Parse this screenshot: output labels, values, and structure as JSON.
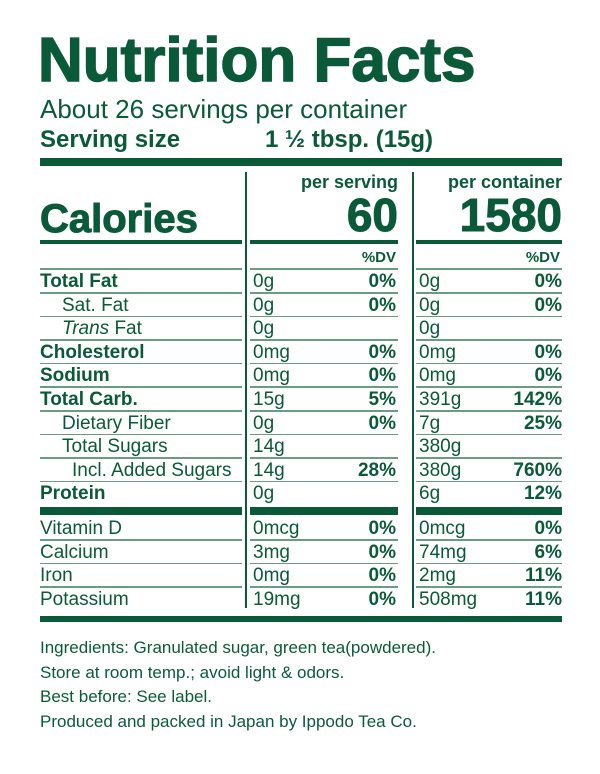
{
  "title": "Nutrition Facts",
  "servings_per_container": "About 26 servings per container",
  "serving_size_label": "Serving size",
  "serving_size_value": "1 ½ tbsp. (15g)",
  "per_serving_label": "per serving",
  "per_container_label": "per container",
  "calories_label": "Calories",
  "calories_per_serving": "60",
  "calories_per_container": "1580",
  "dv_label": "%DV",
  "color": "#0a5a3a",
  "nutrients": [
    {
      "name": "Total Fat",
      "style": "bold",
      "indent": 0,
      "serving": "0g",
      "serving_dv": "0%",
      "container": "0g",
      "container_dv": "0%"
    },
    {
      "name": "Sat. Fat",
      "style": "",
      "indent": 1,
      "serving": "0g",
      "serving_dv": "0%",
      "container": "0g",
      "container_dv": "0%"
    },
    {
      "name": "Trans Fat",
      "style": "trans",
      "indent": 1,
      "serving": "0g",
      "serving_dv": "",
      "container": "0g",
      "container_dv": ""
    },
    {
      "name": "Cholesterol",
      "style": "bold",
      "indent": 0,
      "serving": "0mg",
      "serving_dv": "0%",
      "container": "0mg",
      "container_dv": "0%"
    },
    {
      "name": "Sodium",
      "style": "bold",
      "indent": 0,
      "serving": "0mg",
      "serving_dv": "0%",
      "container": "0mg",
      "container_dv": "0%"
    },
    {
      "name": "Total Carb.",
      "style": "bold",
      "indent": 0,
      "serving": "15g",
      "serving_dv": "5%",
      "container": "391g",
      "container_dv": "142%"
    },
    {
      "name": "Dietary Fiber",
      "style": "",
      "indent": 1,
      "serving": "0g",
      "serving_dv": "0%",
      "container": "7g",
      "container_dv": "25%"
    },
    {
      "name": "Total Sugars",
      "style": "",
      "indent": 1,
      "serving": "14g",
      "serving_dv": "",
      "container": "380g",
      "container_dv": ""
    },
    {
      "name": "Incl. Added Sugars",
      "style": "",
      "indent": 2,
      "serving": "14g",
      "serving_dv": "28%",
      "container": "380g",
      "container_dv": "760%"
    },
    {
      "name": "Protein",
      "style": "bold",
      "indent": 0,
      "serving": "0g",
      "serving_dv": "",
      "container": "6g",
      "container_dv": "12%"
    }
  ],
  "vitamins": [
    {
      "name": "Vitamin D",
      "serving": "0mcg",
      "serving_dv": "0%",
      "container": "0mcg",
      "container_dv": "0%"
    },
    {
      "name": "Calcium",
      "serving": "3mg",
      "serving_dv": "0%",
      "container": "74mg",
      "container_dv": "6%"
    },
    {
      "name": "Iron",
      "serving": "0mg",
      "serving_dv": "0%",
      "container": "2mg",
      "container_dv": "11%"
    },
    {
      "name": "Potassium",
      "serving": "19mg",
      "serving_dv": "0%",
      "container": "508mg",
      "container_dv": "11%"
    }
  ],
  "footer": [
    "Ingredients: Granulated sugar, green tea(powdered).",
    "Store at room temp.; avoid light & odors.",
    "Best before: See label.",
    "Produced and packed in Japan by Ippodo Tea Co."
  ]
}
